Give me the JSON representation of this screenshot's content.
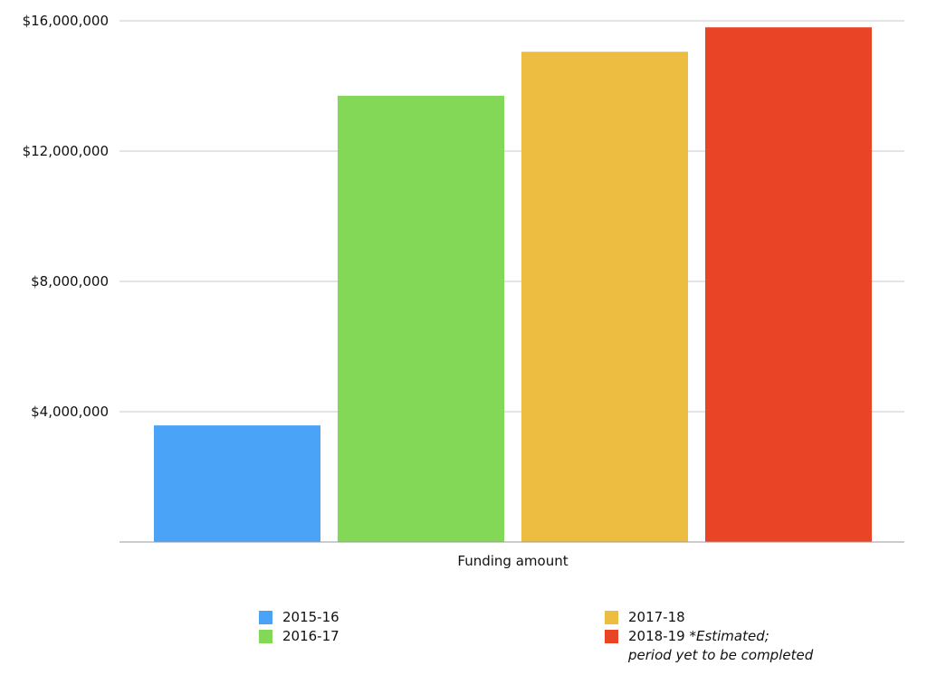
{
  "chart_data": {
    "type": "bar",
    "title": "",
    "xlabel": "",
    "ylabel": "",
    "categories": [
      "Funding amount"
    ],
    "ylim": [
      0,
      16000000
    ],
    "yticks": [
      {
        "value": 4000000,
        "label": "$4,000,000"
      },
      {
        "value": 8000000,
        "label": "$8,000,000"
      },
      {
        "value": 12000000,
        "label": "$12,000,000"
      },
      {
        "value": 16000000,
        "label": "$16,000,000"
      }
    ],
    "grid": true,
    "legend_position": "bottom",
    "series": [
      {
        "name": "2015-16",
        "values": [
          3580000
        ],
        "color": "#4aa3f7"
      },
      {
        "name": "2016-17",
        "values": [
          13700000
        ],
        "color": "#84d858"
      },
      {
        "name": "2017-18",
        "values": [
          15050000
        ],
        "color": "#edbd42"
      },
      {
        "name": "2018-19",
        "values": [
          15800000
        ],
        "color": "#e94426",
        "note_line1": "*Estimated;",
        "note_line2": "period yet to be completed"
      }
    ]
  }
}
